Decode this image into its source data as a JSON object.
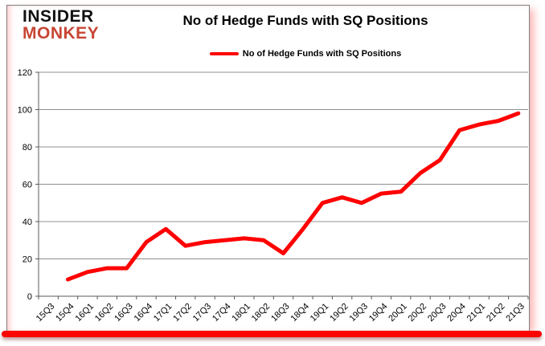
{
  "header": {
    "logo": {
      "line1": "INSIDER",
      "line2": "MONKEY"
    },
    "title": "No of Hedge Funds with SQ Positions"
  },
  "legend": {
    "label": "No of Hedge Funds with SQ Positions"
  },
  "chart_data": {
    "type": "line",
    "title": "No of Hedge Funds with SQ Positions",
    "categories": [
      "15Q3",
      "15Q4",
      "16Q1",
      "16Q2",
      "16Q3",
      "16Q4",
      "17Q1",
      "17Q2",
      "17Q3",
      "17Q4",
      "18Q1",
      "18Q2",
      "18Q3",
      "18Q4",
      "19Q1",
      "19Q2",
      "19Q3",
      "19Q4",
      "20Q1",
      "20Q2",
      "20Q3",
      "20Q4",
      "21Q1",
      "21Q2",
      "21Q3"
    ],
    "series": [
      {
        "name": "No of Hedge Funds with SQ Positions",
        "values": [
          null,
          9,
          13,
          15,
          15,
          29,
          36,
          27,
          29,
          30,
          31,
          30,
          23,
          36,
          50,
          53,
          50,
          55,
          56,
          66,
          73,
          89,
          92,
          94,
          98
        ]
      }
    ],
    "xlabel": "",
    "ylabel": "",
    "ylim": [
      0,
      120
    ],
    "yticks": [
      0,
      20,
      40,
      60,
      80,
      100,
      120
    ],
    "grid": true,
    "legend_position": "top-center"
  },
  "colors": {
    "line_red": "#fe0000",
    "logo_red": "#c74634",
    "logo_black": "#111111",
    "bottom_bar_red": "#fb0500",
    "grid_gray": "#909090",
    "axis_gray": "#595959",
    "text_black": "#000000"
  }
}
